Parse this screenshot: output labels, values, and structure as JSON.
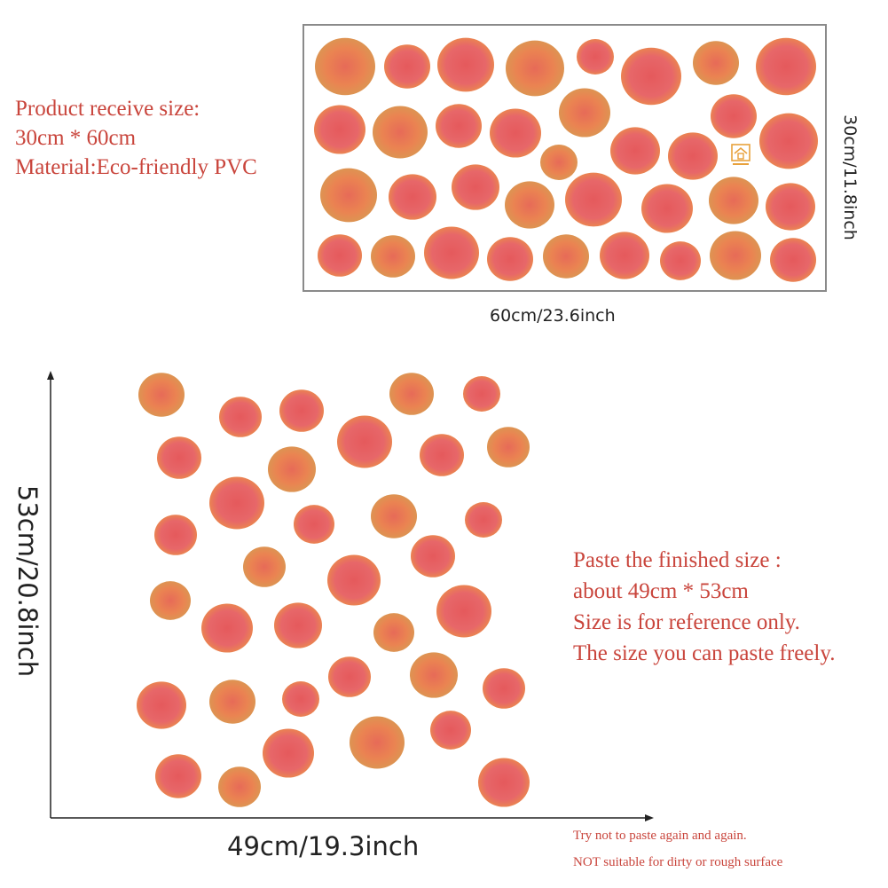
{
  "top_info": {
    "lines": [
      "Product receive size:",
      "30cm * 60cm",
      "Material:Eco-friendly PVC"
    ]
  },
  "top_dimensions": {
    "width_label": "60cm/23.6inch",
    "height_label": "30cm/11.8inch"
  },
  "bottom_info": {
    "lines": [
      "Paste the finished size :",
      "about 49cm * 53cm",
      "Size is for reference only.",
      "The size you can paste freely."
    ]
  },
  "bottom_dimensions": {
    "width_label": "49cm/19.3inch",
    "height_label": "53cm/20.8inch"
  },
  "notes": {
    "line1": "Try not to paste again and again.",
    "line2": "NOT suitable for dirty or rough surface"
  },
  "colors": {
    "text_red": "#c9453c",
    "dot_red": "#e2474a",
    "dot_orange": "#e8763e",
    "dot_edge": "#d9883f"
  }
}
